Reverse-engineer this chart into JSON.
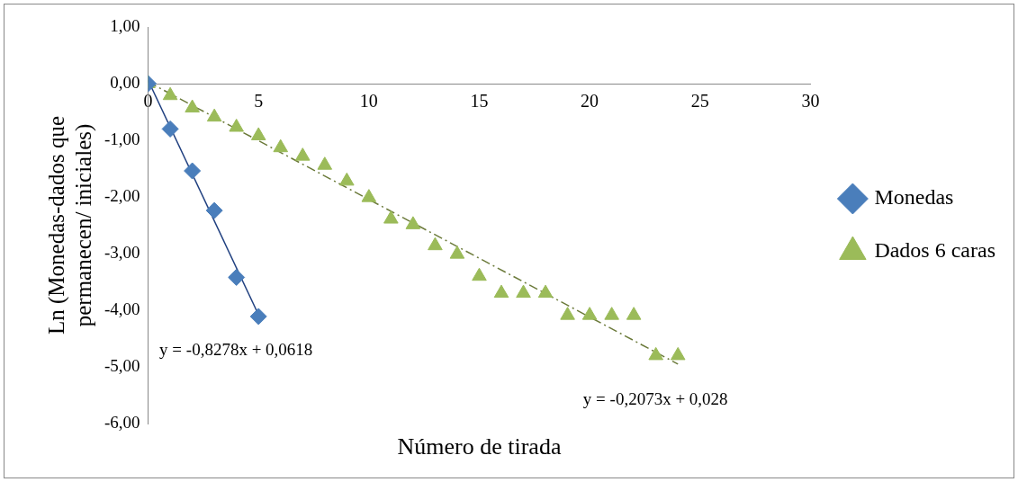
{
  "chart_data": {
    "type": "scatter",
    "xlabel": "Número de tirada",
    "ylabel": "Ln (Monedas-dados que permanecen/ iniciales)",
    "xlim": [
      0,
      30
    ],
    "xticks": [
      0,
      5,
      10,
      15,
      20,
      25,
      30
    ],
    "ylim": [
      -6,
      1
    ],
    "yticks": [
      {
        "value": 1,
        "label": "1,00"
      },
      {
        "value": 0,
        "label": "0,00"
      },
      {
        "value": -1,
        "label": "-1,00"
      },
      {
        "value": -2,
        "label": "-2,00"
      },
      {
        "value": -3,
        "label": "-3,00"
      },
      {
        "value": -4,
        "label": "-4,00"
      },
      {
        "value": -5,
        "label": "-5,00"
      },
      {
        "value": -6,
        "label": "-6,00"
      }
    ],
    "grid": false,
    "legend": "right",
    "series": [
      {
        "name": "Monedas",
        "color": "#4a7ebb",
        "marker": "diamond",
        "x": [
          0,
          1,
          2,
          3,
          4,
          5
        ],
        "values": [
          0,
          -0.8,
          -1.54,
          -2.24,
          -3.42,
          -4.11
        ]
      },
      {
        "name": "Dados 6 caras",
        "color": "#9bbb59",
        "marker": "triangle",
        "x": [
          0,
          1,
          2,
          3,
          4,
          5,
          6,
          7,
          8,
          9,
          10,
          11,
          12,
          13,
          14,
          15,
          16,
          17,
          18,
          19,
          20,
          21,
          22,
          23,
          24
        ],
        "values": [
          0,
          -0.21,
          -0.43,
          -0.59,
          -0.77,
          -0.92,
          -1.13,
          -1.28,
          -1.44,
          -1.72,
          -2.01,
          -2.39,
          -2.49,
          -2.86,
          -3.01,
          -3.4,
          -3.7,
          -3.7,
          -3.7,
          -4.09,
          -4.09,
          -4.09,
          -4.09,
          -4.8,
          -4.8
        ]
      },
      {
        "type": "line",
        "color": "#1f3f7f",
        "marker": "none",
        "line_style": "solid",
        "x": [
          0,
          5
        ],
        "values": [
          0.06,
          -4.08
        ]
      },
      {
        "type": "line",
        "color": "#6b7a3a",
        "marker": "none",
        "line_style": "dashed",
        "x": [
          0,
          24
        ],
        "values": [
          0.03,
          -4.95
        ]
      }
    ],
    "annotations": [
      "y = -0,8278x + 0,0618",
      "y = -0,2073x + 0,028"
    ]
  }
}
